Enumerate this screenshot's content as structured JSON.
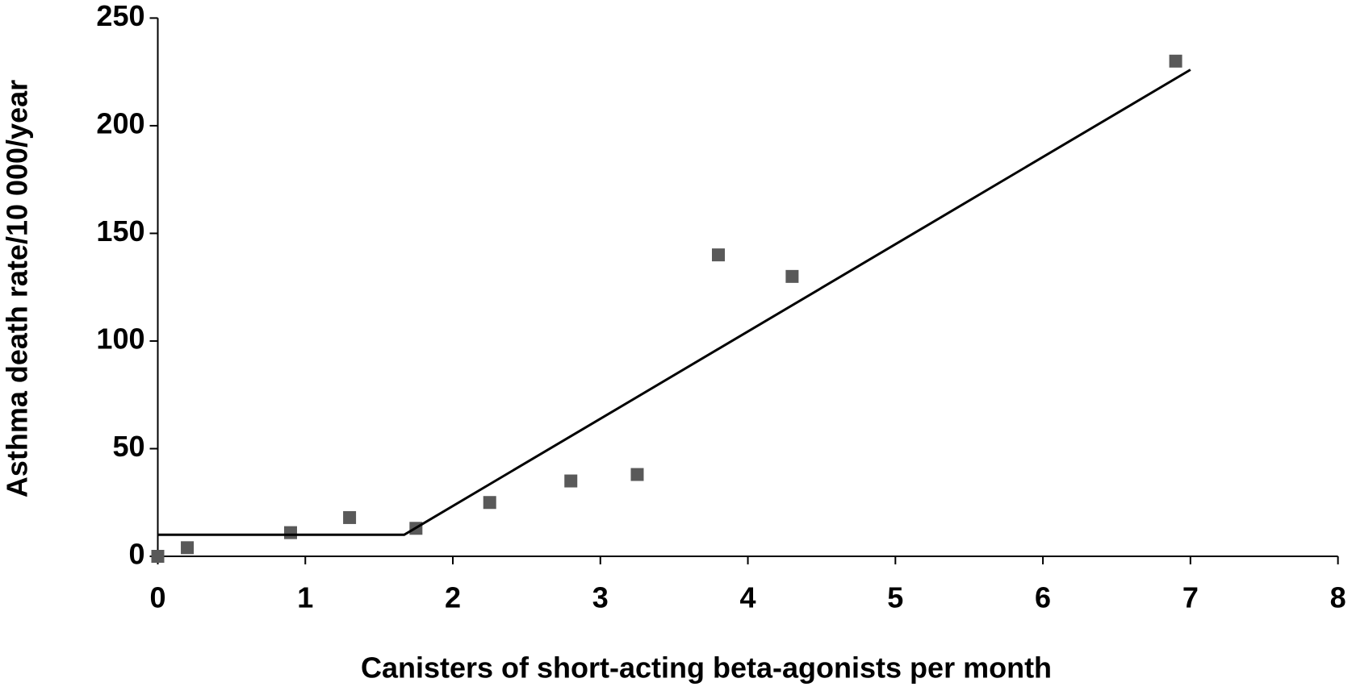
{
  "chart_data": {
    "type": "scatter",
    "x_label": "Canisters of short-acting beta-agonists per month",
    "y_label": "Asthma death rate/10 000/year",
    "xlim": [
      0,
      8
    ],
    "xticks": [
      0,
      1,
      2,
      3,
      4,
      5,
      6,
      7,
      8
    ],
    "ylim": [
      0,
      250
    ],
    "yticks": [
      0,
      50,
      100,
      150,
      200,
      250
    ],
    "grid": false,
    "series": [
      {
        "type": "scatter",
        "color": "#595959",
        "x": [
          0,
          0.2,
          0.9,
          1.3,
          1.75,
          2.25,
          2.8,
          3.25,
          3.8,
          4.3,
          6.9
        ],
        "values": [
          0,
          4,
          11,
          18,
          13,
          25,
          35,
          38,
          140,
          130,
          230
        ]
      },
      {
        "type": "line",
        "color": "#000000",
        "x": [
          0,
          1.67,
          7
        ],
        "values": [
          10,
          10,
          226
        ]
      }
    ]
  }
}
